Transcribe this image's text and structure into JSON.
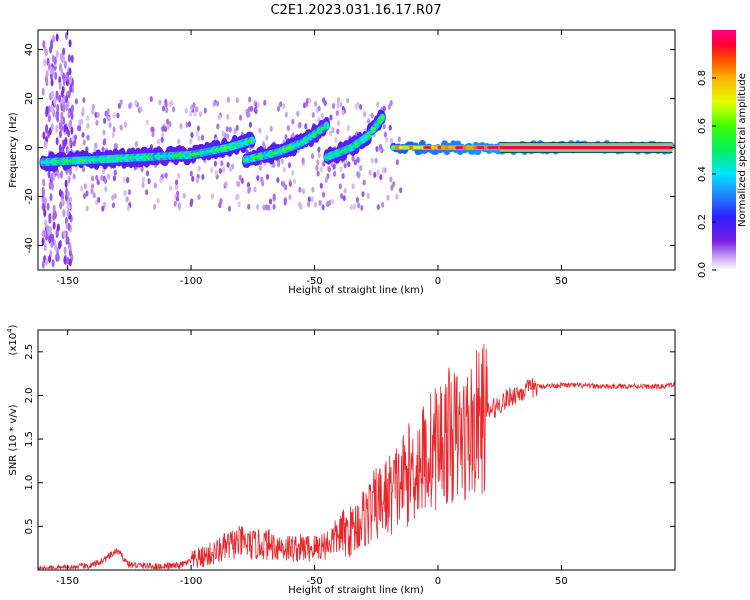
{
  "title": "C2E1.2023.031.16.17.R07",
  "colors": {
    "snr_line": "#e8262b",
    "axis": "#000000",
    "background": "#ffffff"
  },
  "chart_data": [
    {
      "type": "heatmap",
      "xlabel": "Height of straight line (km)",
      "ylabel": "Frequency (Hz)",
      "xlim": [
        -162,
        96
      ],
      "ylim": [
        -50,
        48
      ],
      "xticks": [
        -150,
        -100,
        -50,
        0,
        50
      ],
      "xtick_labels": [
        "-150",
        "-100",
        "-50",
        "0",
        "50"
      ],
      "yticks": [
        40,
        20,
        0,
        -20,
        -40
      ],
      "ytick_labels": [
        "40",
        "20",
        "0",
        "-20",
        "-40"
      ],
      "colorbar": {
        "label": "Normalized spectral amplitude",
        "range": [
          0,
          1
        ],
        "ticks": [
          0.0,
          0.2,
          0.4,
          0.6,
          0.8
        ],
        "tick_labels": [
          "0.0",
          "0.2",
          "0.4",
          "0.6",
          "0.8"
        ],
        "colormap": "rainbow (white-violet-blue-cyan-green-yellow-orange-red-magenta)"
      },
      "ridges": [
        {
          "x": [
            -160,
            -140,
            -120,
            -100,
            -85,
            -75
          ],
          "freq": [
            -6,
            -5,
            -4,
            -3,
            0,
            3
          ],
          "amp": [
            0.45,
            0.5,
            0.45,
            0.45,
            0.5,
            0.5
          ]
        },
        {
          "x": [
            -78,
            -65,
            -55,
            -45
          ],
          "freq": [
            -5,
            -2,
            2,
            9
          ],
          "amp": [
            0.45,
            0.5,
            0.5,
            0.4
          ]
        },
        {
          "x": [
            -45,
            -35,
            -28,
            -22
          ],
          "freq": [
            -4,
            0,
            5,
            13
          ],
          "amp": [
            0.45,
            0.45,
            0.5,
            0.55
          ]
        },
        {
          "x": [
            -18,
            0,
            30,
            95
          ],
          "freq": [
            0,
            0,
            0,
            0
          ],
          "amp": [
            0.75,
            0.85,
            0.95,
            0.95
          ]
        }
      ]
    },
    {
      "type": "line",
      "xlabel": "Height of straight line (km)",
      "ylabel": "SNR (10 * v/v)",
      "y_multiplier": "(x10",
      "y_multiplier_exp": "4",
      "y_multiplier_close": ")",
      "xlim": [
        -162,
        96
      ],
      "ylim": [
        0,
        2.75
      ],
      "xticks": [
        -150,
        -100,
        -50,
        0,
        50
      ],
      "xtick_labels": [
        "-150",
        "-100",
        "-50",
        "0",
        "50"
      ],
      "yticks": [
        0.5,
        1.0,
        1.5,
        2.0,
        2.5
      ],
      "ytick_labels": [
        "0.5",
        "1.0",
        "1.5",
        "2.0",
        "2.5"
      ],
      "series": [
        {
          "x": [
            -162,
            -150,
            -140,
            -135,
            -130,
            -125,
            -115,
            -105,
            -100,
            -95,
            -90,
            -85,
            -80,
            -75,
            -70,
            -60,
            -50,
            -45,
            -40,
            -35,
            -30,
            -25,
            -20,
            -15,
            -10,
            -5,
            0,
            5,
            10,
            15,
            20,
            25,
            30,
            35,
            40,
            50,
            60,
            70,
            80,
            85,
            90,
            95
          ],
          "y": [
            0.01,
            0.02,
            0.05,
            0.12,
            0.22,
            0.06,
            0.04,
            0.05,
            0.1,
            0.15,
            0.2,
            0.28,
            0.32,
            0.28,
            0.3,
            0.25,
            0.25,
            0.3,
            0.4,
            0.45,
            0.6,
            0.75,
            0.85,
            1.0,
            1.15,
            1.3,
            1.45,
            1.55,
            1.5,
            1.65,
            1.8,
            1.9,
            2.0,
            2.05,
            2.1,
            2.12,
            2.11,
            2.1,
            2.11,
            2.1,
            2.1,
            2.12
          ]
        }
      ]
    }
  ]
}
